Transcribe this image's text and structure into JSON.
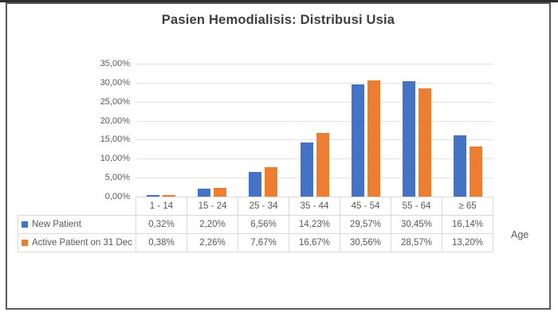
{
  "chart_data": {
    "type": "bar",
    "title": "Pasien Hemodialisis: Distribusi Usia",
    "categories": [
      "1 - 14",
      "15 - 24",
      "25 - 34",
      "35 - 44",
      "45 - 54",
      "55 - 64",
      "≥ 65"
    ],
    "series": [
      {
        "name": "New Patient",
        "color": "#4472C4",
        "values": [
          0.32,
          2.2,
          6.56,
          14.23,
          29.57,
          30.45,
          16.14
        ],
        "labels": [
          "0,32%",
          "2,20%",
          "6,56%",
          "14,23%",
          "29,57%",
          "30,45%",
          "16,14%"
        ]
      },
      {
        "name": "Active Patient on 31 Dec",
        "color": "#ED7D31",
        "values": [
          0.38,
          2.26,
          7.67,
          16.67,
          30.56,
          28.57,
          13.2
        ],
        "labels": [
          "0,38%",
          "2,26%",
          "7,67%",
          "16,67%",
          "30,56%",
          "28,57%",
          "13,20%"
        ]
      }
    ],
    "xlabel": "Age",
    "ylabel": "",
    "ylim": [
      0,
      35
    ],
    "ytick_step": 5,
    "ytick_labels": [
      "0,00%",
      "5,00%",
      "10,00%",
      "15,00%",
      "20,00%",
      "25,00%",
      "30,00%",
      "35,00%"
    ],
    "grid": true,
    "legend_position": "data-table-left",
    "colors": {
      "gridline": "#e2e2e2",
      "table_border": "#d9d9d9",
      "axis_text": "#595959",
      "title_text": "#3d3d3d",
      "frame_border": "#5a5a5a"
    }
  }
}
